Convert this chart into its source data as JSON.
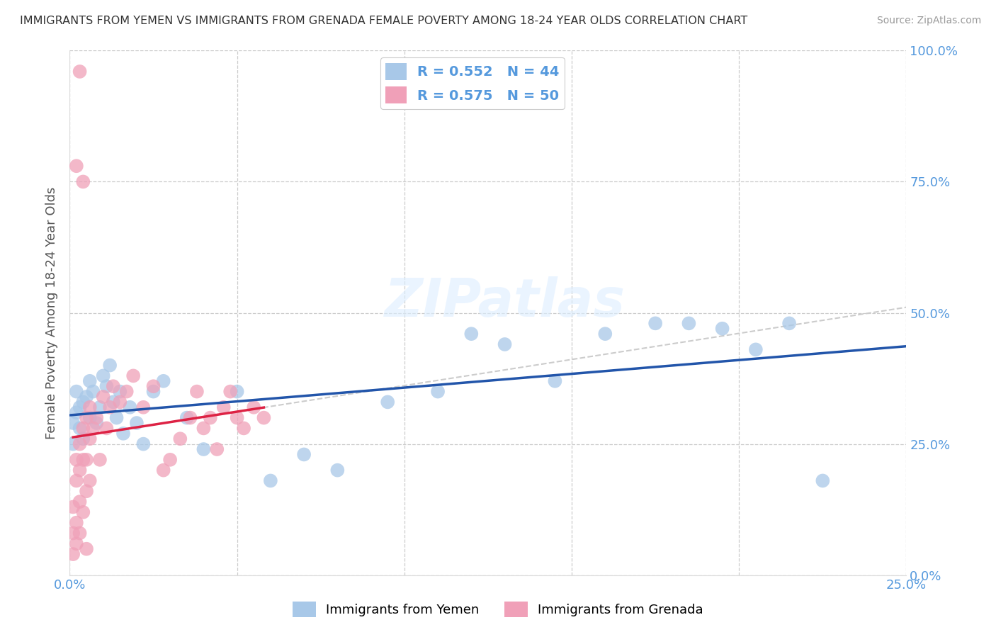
{
  "title": "IMMIGRANTS FROM YEMEN VS IMMIGRANTS FROM GRENADA FEMALE POVERTY AMONG 18-24 YEAR OLDS CORRELATION CHART",
  "source": "Source: ZipAtlas.com",
  "ylabel": "Female Poverty Among 18-24 Year Olds",
  "xlim": [
    0.0,
    0.25
  ],
  "ylim": [
    0.0,
    1.0
  ],
  "yticks": [
    0.0,
    0.25,
    0.5,
    0.75,
    1.0
  ],
  "ytick_labels": [
    "0.0%",
    "25.0%",
    "50.0%",
    "75.0%",
    "100.0%"
  ],
  "xticks": [
    0.0,
    0.05,
    0.1,
    0.15,
    0.2,
    0.25
  ],
  "xtick_labels": [
    "0.0%",
    "",
    "",
    "",
    "",
    "25.0%"
  ],
  "yemen_color": "#a8c8e8",
  "grenada_color": "#f0a0b8",
  "yemen_R": 0.552,
  "yemen_N": 44,
  "grenada_R": 0.575,
  "grenada_N": 50,
  "trend_line_blue": "#2255aa",
  "trend_line_pink": "#dd2244",
  "watermark": "ZIPatlas",
  "legend_label_blue": "Immigrants from Yemen",
  "legend_label_pink": "Immigrants from Grenada",
  "yemen_x": [
    0.001,
    0.001,
    0.002,
    0.002,
    0.003,
    0.003,
    0.004,
    0.004,
    0.005,
    0.006,
    0.006,
    0.007,
    0.008,
    0.009,
    0.01,
    0.011,
    0.012,
    0.013,
    0.014,
    0.015,
    0.016,
    0.018,
    0.02,
    0.022,
    0.025,
    0.028,
    0.035,
    0.04,
    0.05,
    0.06,
    0.07,
    0.08,
    0.095,
    0.11,
    0.12,
    0.13,
    0.145,
    0.16,
    0.175,
    0.185,
    0.195,
    0.205,
    0.215,
    0.225
  ],
  "yemen_y": [
    0.29,
    0.25,
    0.35,
    0.31,
    0.28,
    0.32,
    0.26,
    0.33,
    0.34,
    0.3,
    0.37,
    0.35,
    0.29,
    0.32,
    0.38,
    0.36,
    0.4,
    0.33,
    0.3,
    0.35,
    0.27,
    0.32,
    0.29,
    0.25,
    0.35,
    0.37,
    0.3,
    0.24,
    0.35,
    0.18,
    0.23,
    0.2,
    0.33,
    0.35,
    0.46,
    0.44,
    0.37,
    0.46,
    0.48,
    0.48,
    0.47,
    0.43,
    0.48,
    0.18
  ],
  "grenada_x": [
    0.001,
    0.001,
    0.001,
    0.002,
    0.002,
    0.002,
    0.002,
    0.003,
    0.003,
    0.003,
    0.003,
    0.004,
    0.004,
    0.004,
    0.005,
    0.005,
    0.005,
    0.005,
    0.006,
    0.006,
    0.006,
    0.007,
    0.008,
    0.009,
    0.01,
    0.011,
    0.012,
    0.013,
    0.015,
    0.017,
    0.019,
    0.022,
    0.025,
    0.028,
    0.03,
    0.033,
    0.036,
    0.038,
    0.04,
    0.042,
    0.044,
    0.046,
    0.048,
    0.05,
    0.052,
    0.055,
    0.058,
    0.002,
    0.003,
    0.004
  ],
  "grenada_y": [
    0.04,
    0.08,
    0.13,
    0.06,
    0.1,
    0.18,
    0.22,
    0.14,
    0.2,
    0.25,
    0.08,
    0.12,
    0.22,
    0.28,
    0.16,
    0.22,
    0.3,
    0.05,
    0.18,
    0.26,
    0.32,
    0.28,
    0.3,
    0.22,
    0.34,
    0.28,
    0.32,
    0.36,
    0.33,
    0.35,
    0.38,
    0.32,
    0.36,
    0.2,
    0.22,
    0.26,
    0.3,
    0.35,
    0.28,
    0.3,
    0.24,
    0.32,
    0.35,
    0.3,
    0.28,
    0.32,
    0.3,
    0.78,
    0.96,
    0.75
  ]
}
